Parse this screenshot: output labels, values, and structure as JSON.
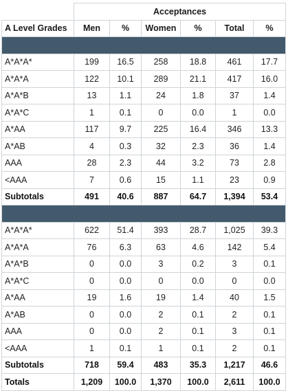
{
  "header": {
    "group_title": "Acceptances",
    "row_header": "A Level Grades",
    "columns": [
      "Men",
      "%",
      "Women",
      "%",
      "Total",
      "%"
    ]
  },
  "colors": {
    "band": "#425a6c",
    "grid": "#cfd4d8"
  },
  "groups": [
    {
      "rows": [
        {
          "grade": "A*A*A*",
          "cells": [
            "199",
            "16.5",
            "258",
            "18.8",
            "461",
            "17.7"
          ]
        },
        {
          "grade": "A*A*A",
          "cells": [
            "122",
            "10.1",
            "289",
            "21.1",
            "417",
            "16.0"
          ]
        },
        {
          "grade": "A*A*B",
          "cells": [
            "13",
            "1.1",
            "24",
            "1.8",
            "37",
            "1.4"
          ]
        },
        {
          "grade": "A*A*C",
          "cells": [
            "1",
            "0.1",
            "0",
            "0.0",
            "1",
            "0.0"
          ]
        },
        {
          "grade": "A*AA",
          "cells": [
            "117",
            "9.7",
            "225",
            "16.4",
            "346",
            "13.3"
          ]
        },
        {
          "grade": "A*AB",
          "cells": [
            "4",
            "0.3",
            "32",
            "2.3",
            "36",
            "1.4"
          ]
        },
        {
          "grade": "AAA",
          "cells": [
            "28",
            "2.3",
            "44",
            "3.2",
            "73",
            "2.8"
          ]
        },
        {
          "grade": "<AAA",
          "cells": [
            "7",
            "0.6",
            "15",
            "1.1",
            "23",
            "0.9"
          ]
        }
      ],
      "subtotal": {
        "label": "Subtotals",
        "cells": [
          "491",
          "40.6",
          "887",
          "64.7",
          "1,394",
          "53.4"
        ]
      }
    },
    {
      "rows": [
        {
          "grade": "A*A*A*",
          "cells": [
            "622",
            "51.4",
            "393",
            "28.7",
            "1,025",
            "39.3"
          ]
        },
        {
          "grade": "A*A*A",
          "cells": [
            "76",
            "6.3",
            "63",
            "4.6",
            "142",
            "5.4"
          ]
        },
        {
          "grade": "A*A*B",
          "cells": [
            "0",
            "0.0",
            "3",
            "0.2",
            "3",
            "0.1"
          ]
        },
        {
          "grade": "A*A*C",
          "cells": [
            "0",
            "0.0",
            "0",
            "0.0",
            "0",
            "0.0"
          ]
        },
        {
          "grade": "A*AA",
          "cells": [
            "19",
            "1.6",
            "19",
            "1.4",
            "40",
            "1.5"
          ]
        },
        {
          "grade": "A*AB",
          "cells": [
            "0",
            "0.0",
            "2",
            "0.1",
            "2",
            "0.1"
          ]
        },
        {
          "grade": "AAA",
          "cells": [
            "0",
            "0.0",
            "2",
            "0.1",
            "3",
            "0.1"
          ]
        },
        {
          "grade": "<AAA",
          "cells": [
            "1",
            "0.1",
            "1",
            "0.1",
            "2",
            "0.1"
          ]
        }
      ],
      "subtotal": {
        "label": "Subtotals",
        "cells": [
          "718",
          "59.4",
          "483",
          "35.3",
          "1,217",
          "46.6"
        ]
      }
    }
  ],
  "totals": {
    "label": "Totals",
    "cells": [
      "1,209",
      "100.0",
      "1,370",
      "100.0",
      "2,611",
      "100.0"
    ]
  }
}
